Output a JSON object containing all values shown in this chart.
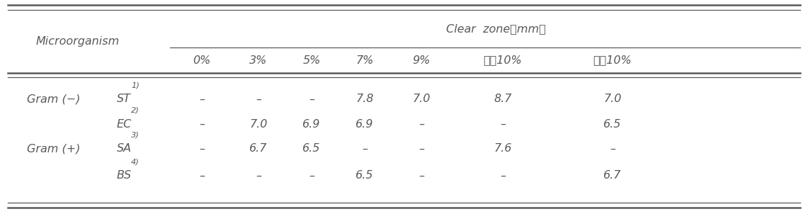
{
  "clear_zone_label": "Clear  zone（mm）",
  "col_headers": [
    "0%",
    "3%",
    "5%",
    "7%",
    "9%",
    "생마10%",
    "증마10%"
  ],
  "gram_labels": [
    "Gram (−)",
    "",
    "Gram (+)",
    ""
  ],
  "species_labels": [
    "ST",
    "EC",
    "SA",
    "BS"
  ],
  "superscripts": [
    "1)",
    "2)",
    "3)",
    "4)"
  ],
  "data": [
    [
      "–",
      "–",
      "–",
      "7.8",
      "7.0",
      "8.7",
      "7.0"
    ],
    [
      "–",
      "7.0",
      "6.9",
      "6.9",
      "–",
      "–",
      "6.5"
    ],
    [
      "–",
      "6.7",
      "6.5",
      "–",
      "–",
      "7.6",
      "–"
    ],
    [
      "–",
      "–",
      "–",
      "6.5",
      "–",
      "–",
      "6.7"
    ]
  ],
  "bg_color": "#ffffff",
  "text_color": "#595959",
  "line_color": "#595959",
  "font_size": 11.5,
  "micro_label": "Microorganism"
}
